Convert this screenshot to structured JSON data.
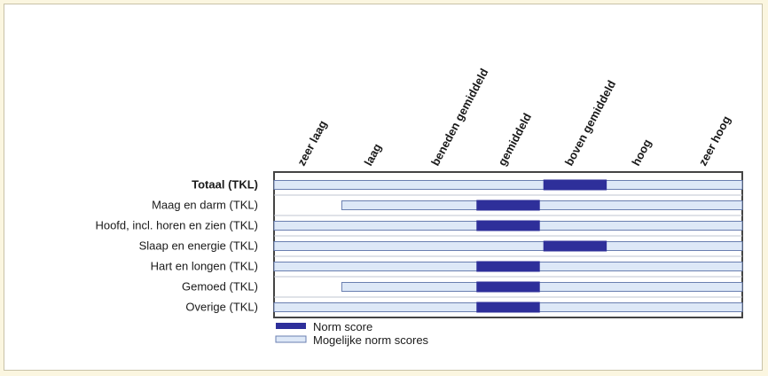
{
  "chart_data": {
    "type": "bar",
    "subtype": "range-strip",
    "levels": [
      "zeer laag",
      "laag",
      "beneden gemiddeld",
      "gemiddeld",
      "boven gemiddeld",
      "hoog",
      "zeer hoog"
    ],
    "rows": [
      {
        "label": "Totaal (TKL)",
        "bold": true,
        "possible_range": [
          1,
          7
        ],
        "norm_score": [
          5,
          5
        ]
      },
      {
        "label": "Maag en darm (TKL)",
        "bold": false,
        "possible_range": [
          2,
          7
        ],
        "norm_score": [
          4,
          4
        ]
      },
      {
        "label": "Hoofd, incl. horen en zien (TKL)",
        "bold": false,
        "possible_range": [
          1,
          7
        ],
        "norm_score": [
          4,
          4
        ]
      },
      {
        "label": "Slaap en energie (TKL)",
        "bold": false,
        "possible_range": [
          1,
          7
        ],
        "norm_score": [
          5,
          5
        ]
      },
      {
        "label": "Hart en longen (TKL)",
        "bold": false,
        "possible_range": [
          1,
          7
        ],
        "norm_score": [
          4,
          4
        ]
      },
      {
        "label": "Gemoed (TKL)",
        "bold": false,
        "possible_range": [
          2,
          7
        ],
        "norm_score": [
          4,
          4
        ]
      },
      {
        "label": "Overige (TKL)",
        "bold": false,
        "possible_range": [
          1,
          7
        ],
        "norm_score": [
          4,
          4
        ]
      }
    ],
    "legend": [
      {
        "key": "norm",
        "label": "Norm score"
      },
      {
        "key": "possible",
        "label": "Mogelijke norm scores"
      }
    ],
    "colors": {
      "norm": "#2e2f9a",
      "possible_fill": "#dde8f7",
      "possible_stroke": "#6a7fb0",
      "frame_stroke": "#444444",
      "divider": "#bfc4d0"
    }
  }
}
